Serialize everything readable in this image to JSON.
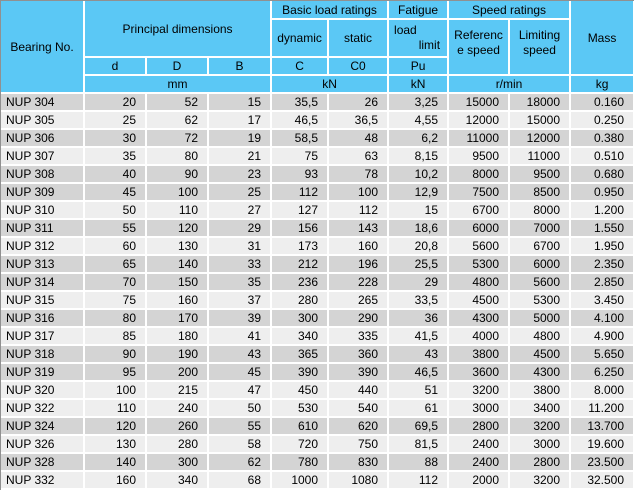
{
  "colors": {
    "header_bg": "#5BC8F5",
    "row_gray": "#D4D4D4",
    "row_light": "#EEEEEE",
    "grid_line": "#FFFFFF",
    "text": "#000000"
  },
  "table": {
    "header": {
      "bearing_no": "Bearing No.",
      "principal_dimensions": "Principal dimensions",
      "basic_load_ratings": "Basic load ratings",
      "fatigue": "Fatigue",
      "fatigue_load": "load",
      "fatigue_limit": "limit",
      "speed_ratings": "Speed ratings",
      "mass": "Mass",
      "dynamic": "dynamic",
      "static": "static",
      "reference_speed_line1": "Referenc",
      "reference_speed_line2": "e speed",
      "limiting_speed_line1": "Limiting",
      "limiting_speed_line2": "speed",
      "col_d": "d",
      "col_D": "D",
      "col_B": "B",
      "col_C": "C",
      "col_C0": "C0",
      "col_Pu": "Pu",
      "unit_mm": "mm",
      "unit_kn_basic": "kN",
      "unit_kn_fatigue": "kN",
      "unit_rmin": "r/min",
      "unit_kg": "kg"
    },
    "rows": [
      {
        "bearing": "NUP 304",
        "d": "20",
        "D": "52",
        "B": "15",
        "C": "35,5",
        "C0": "26",
        "Pu": "3,25",
        "ref": "15000",
        "lim": "18000",
        "mass": "0.160",
        "shade": "g"
      },
      {
        "bearing": "NUP 305",
        "d": "25",
        "D": "62",
        "B": "17",
        "C": "46,5",
        "C0": "36,5",
        "Pu": "4,55",
        "ref": "12000",
        "lim": "15000",
        "mass": "0.250",
        "shade": "w"
      },
      {
        "bearing": "NUP 306",
        "d": "30",
        "D": "72",
        "B": "19",
        "C": "58,5",
        "C0": "48",
        "Pu": "6,2",
        "ref": "11000",
        "lim": "12000",
        "mass": "0.380",
        "shade": "g"
      },
      {
        "bearing": "NUP 307",
        "d": "35",
        "D": "80",
        "B": "21",
        "C": "75",
        "C0": "63",
        "Pu": "8,15",
        "ref": "9500",
        "lim": "11000",
        "mass": "0.510",
        "shade": "w"
      },
      {
        "bearing": "NUP 308",
        "d": "40",
        "D": "90",
        "B": "23",
        "C": "93",
        "C0": "78",
        "Pu": "10,2",
        "ref": "8000",
        "lim": "9500",
        "mass": "0.680",
        "shade": "g"
      },
      {
        "bearing": "NUP 309",
        "d": "45",
        "D": "100",
        "B": "25",
        "C": "112",
        "C0": "100",
        "Pu": "12,9",
        "ref": "7500",
        "lim": "8500",
        "mass": "0.950",
        "shade": "g"
      },
      {
        "bearing": "NUP 310",
        "d": "50",
        "D": "110",
        "B": "27",
        "C": "127",
        "C0": "112",
        "Pu": "15",
        "ref": "6700",
        "lim": "8000",
        "mass": "1.200",
        "shade": "w"
      },
      {
        "bearing": "NUP 311",
        "d": "55",
        "D": "120",
        "B": "29",
        "C": "156",
        "C0": "143",
        "Pu": "18,6",
        "ref": "6000",
        "lim": "7000",
        "mass": "1.550",
        "shade": "g"
      },
      {
        "bearing": "NUP 312",
        "d": "60",
        "D": "130",
        "B": "31",
        "C": "173",
        "C0": "160",
        "Pu": "20,8",
        "ref": "5600",
        "lim": "6700",
        "mass": "1.950",
        "shade": "w"
      },
      {
        "bearing": "NUP 313",
        "d": "65",
        "D": "140",
        "B": "33",
        "C": "212",
        "C0": "196",
        "Pu": "25,5",
        "ref": "5300",
        "lim": "6000",
        "mass": "2.350",
        "shade": "g"
      },
      {
        "bearing": "NUP 314",
        "d": "70",
        "D": "150",
        "B": "35",
        "C": "236",
        "C0": "228",
        "Pu": "29",
        "ref": "4800",
        "lim": "5600",
        "mass": "2.850",
        "shade": "g"
      },
      {
        "bearing": "NUP 315",
        "d": "75",
        "D": "160",
        "B": "37",
        "C": "280",
        "C0": "265",
        "Pu": "33,5",
        "ref": "4500",
        "lim": "5300",
        "mass": "3.450",
        "shade": "w"
      },
      {
        "bearing": "NUP 316",
        "d": "80",
        "D": "170",
        "B": "39",
        "C": "300",
        "C0": "290",
        "Pu": "36",
        "ref": "4300",
        "lim": "5000",
        "mass": "4.100",
        "shade": "g"
      },
      {
        "bearing": "NUP 317",
        "d": "85",
        "D": "180",
        "B": "41",
        "C": "340",
        "C0": "335",
        "Pu": "41,5",
        "ref": "4000",
        "lim": "4800",
        "mass": "4.900",
        "shade": "w"
      },
      {
        "bearing": "NUP 318",
        "d": "90",
        "D": "190",
        "B": "43",
        "C": "365",
        "C0": "360",
        "Pu": "43",
        "ref": "3800",
        "lim": "4500",
        "mass": "5.650",
        "shade": "g"
      },
      {
        "bearing": "NUP 319",
        "d": "95",
        "D": "200",
        "B": "45",
        "C": "390",
        "C0": "390",
        "Pu": "46,5",
        "ref": "3600",
        "lim": "4300",
        "mass": "6.250",
        "shade": "g"
      },
      {
        "bearing": "NUP 320",
        "d": "100",
        "D": "215",
        "B": "47",
        "C": "450",
        "C0": "440",
        "Pu": "51",
        "ref": "3200",
        "lim": "3800",
        "mass": "8.000",
        "shade": "w"
      },
      {
        "bearing": "NUP 322",
        "d": "110",
        "D": "240",
        "B": "50",
        "C": "530",
        "C0": "540",
        "Pu": "61",
        "ref": "3000",
        "lim": "3400",
        "mass": "11.200",
        "shade": "w"
      },
      {
        "bearing": "NUP 324",
        "d": "120",
        "D": "260",
        "B": "55",
        "C": "610",
        "C0": "620",
        "Pu": "69,5",
        "ref": "2800",
        "lim": "3200",
        "mass": "13.700",
        "shade": "g"
      },
      {
        "bearing": "NUP 326",
        "d": "130",
        "D": "280",
        "B": "58",
        "C": "720",
        "C0": "750",
        "Pu": "81,5",
        "ref": "2400",
        "lim": "3000",
        "mass": "19.600",
        "shade": "w"
      },
      {
        "bearing": "NUP 328",
        "d": "140",
        "D": "300",
        "B": "62",
        "C": "780",
        "C0": "830",
        "Pu": "88",
        "ref": "2400",
        "lim": "2800",
        "mass": "23.500",
        "shade": "g"
      },
      {
        "bearing": "NUP 332",
        "d": "160",
        "D": "340",
        "B": "68",
        "C": "1000",
        "C0": "1080",
        "Pu": "112",
        "ref": "2000",
        "lim": "3200",
        "mass": "32.500",
        "shade": "w"
      }
    ]
  }
}
